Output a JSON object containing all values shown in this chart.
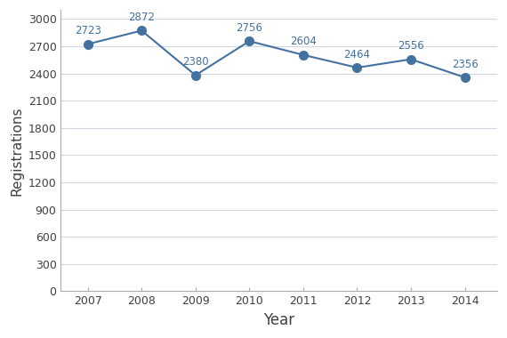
{
  "years": [
    2007,
    2008,
    2009,
    2010,
    2011,
    2012,
    2013,
    2014
  ],
  "values": [
    2723,
    2872,
    2380,
    2756,
    2604,
    2464,
    2556,
    2356
  ],
  "line_color": "#4472a0",
  "marker_color": "#4472a0",
  "label_color": "#4472a0",
  "tick_label_color": "#404040",
  "axis_label_color": "#404040",
  "xlabel": "Year",
  "ylabel": "Registrations",
  "ylim": [
    0,
    3100
  ],
  "yticks": [
    0,
    300,
    600,
    900,
    1200,
    1500,
    1800,
    2100,
    2400,
    2700,
    3000
  ],
  "xlabel_fontsize": 12,
  "ylabel_fontsize": 11,
  "tick_fontsize": 9,
  "label_fontsize": 8.5,
  "background_color": "#ffffff",
  "plot_bg_color": "#ffffff",
  "grid_color": "#d0d8e8",
  "border_color": "#aaaaaa"
}
